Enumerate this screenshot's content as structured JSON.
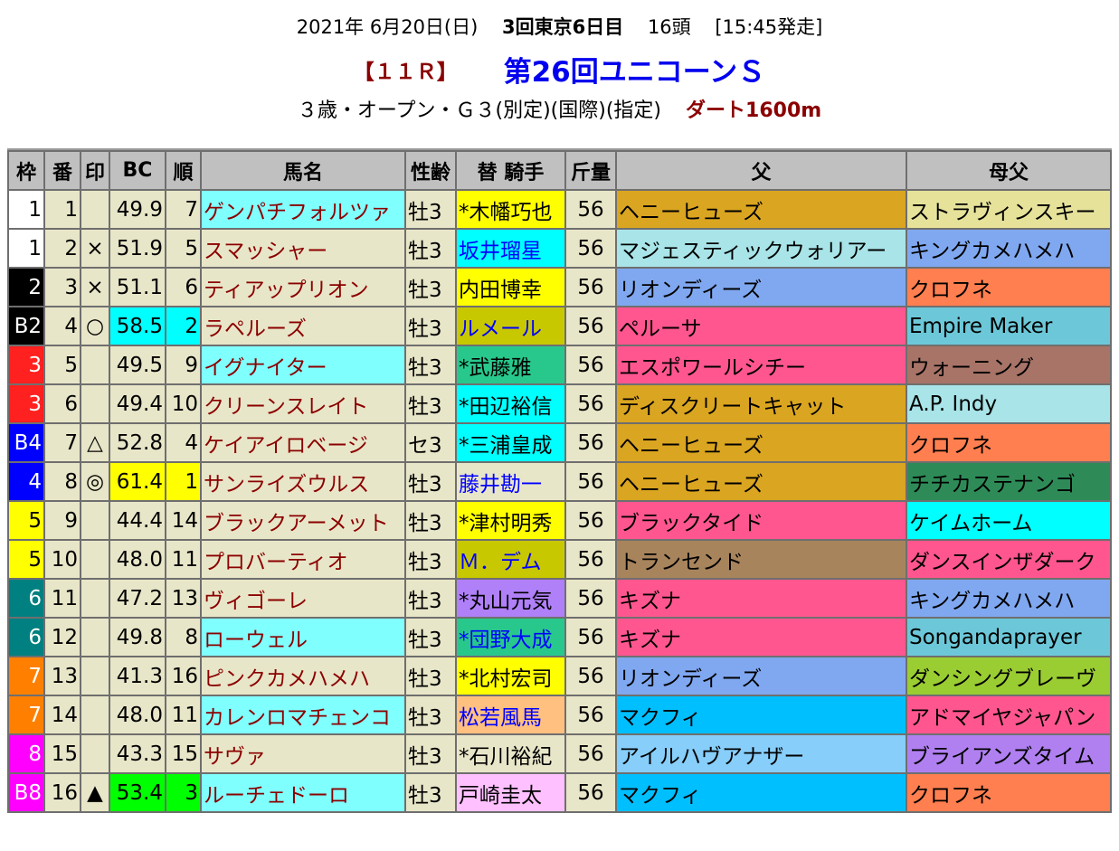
{
  "race": {
    "date": "2021年 6月20日(日)",
    "meeting": "3回東京6日目",
    "runners": "16頭",
    "post_time": "[15:45発走]",
    "race_no": "【１１Ｒ】",
    "title": "第26回ユニコーンＳ",
    "conditions": "３歳・オープン・Ｇ３(別定)(国際)(指定)",
    "course": "ダート1600m"
  },
  "columns": [
    "枠",
    "番",
    "印",
    "BC",
    "順",
    "馬名",
    "性齢",
    "替 騎手",
    "斤量",
    "父",
    "母父"
  ],
  "waku_colors": {
    "1": [
      "#ffffff",
      "#000000"
    ],
    "2": [
      "#000000",
      "#ffffff"
    ],
    "3": [
      "#ff2020",
      "#ffffff"
    ],
    "4": [
      "#0000ff",
      "#ffffff"
    ],
    "5": [
      "#ffff00",
      "#000000"
    ],
    "6": [
      "#008080",
      "#ffffff"
    ],
    "7": [
      "#ff8000",
      "#ffffff"
    ],
    "8": [
      "#ff00ff",
      "#ffffff"
    ]
  },
  "rows": [
    {
      "waku": "1",
      "wc": "1",
      "num": "1",
      "mark": "",
      "bc": "49.9",
      "rank": "7",
      "rank_bg": "",
      "name": "ゲンパチフォルツァ",
      "name_bg": "#80ffff",
      "sex_age": "牡3",
      "jockey": "*木幡巧也",
      "jockey_bg": "#ffff00",
      "jockey_color": "#000000",
      "weight": "56",
      "sire": "ヘニーヒューズ",
      "sire_bg": "#daa520",
      "damsire": "ストラヴィンスキー",
      "damsire_bg": "#e6e29a"
    },
    {
      "waku": "1",
      "wc": "1",
      "num": "2",
      "mark": "×",
      "bc": "51.9",
      "rank": "5",
      "rank_bg": "",
      "name": "スマッシャー",
      "name_bg": "",
      "sex_age": "牡3",
      "jockey": "坂井瑠星",
      "jockey_bg": "#00ffff",
      "jockey_color": "#0000ff",
      "weight": "56",
      "sire": "マジェスティックウォリアー",
      "sire_bg": "#a8e4e8",
      "damsire": "キングカメハメハ",
      "damsire_bg": "#80a8f0"
    },
    {
      "waku": "2",
      "wc": "2",
      "num": "3",
      "mark": "×",
      "bc": "51.1",
      "rank": "6",
      "rank_bg": "",
      "name": "ティアップリオン",
      "name_bg": "",
      "sex_age": "牡3",
      "jockey": "内田博幸",
      "jockey_bg": "#ffff00",
      "jockey_color": "#000000",
      "weight": "56",
      "sire": "リオンディーズ",
      "sire_bg": "#80a8f0",
      "damsire": "クロフネ",
      "damsire_bg": "#ff7f50"
    },
    {
      "waku": "B2",
      "wc": "2",
      "num": "4",
      "mark": "○",
      "bc": "58.5",
      "rank": "2",
      "rank_bg": "#00ffff",
      "name": "ラペルーズ",
      "name_bg": "",
      "sex_age": "牡3",
      "jockey": "ルメール",
      "jockey_bg": "#c8c800",
      "jockey_color": "#0000ff",
      "weight": "56",
      "sire": "ペルーサ",
      "sire_bg": "#ff5690",
      "damsire": "Empire Maker",
      "damsire_bg": "#6cc8d8"
    },
    {
      "waku": "3",
      "wc": "3",
      "num": "5",
      "mark": "",
      "bc": "49.5",
      "rank": "9",
      "rank_bg": "",
      "name": "イグナイター",
      "name_bg": "#80ffff",
      "sex_age": "牡3",
      "jockey": "*武藤雅",
      "jockey_bg": "#28c88c",
      "jockey_color": "#000000",
      "weight": "56",
      "sire": "エスポワールシチー",
      "sire_bg": "#ff5690",
      "damsire": "ウォーニング",
      "damsire_bg": "#a87468"
    },
    {
      "waku": "3",
      "wc": "3",
      "num": "6",
      "mark": "",
      "bc": "49.4",
      "rank": "10",
      "rank_bg": "",
      "name": "クリーンスレイト",
      "name_bg": "",
      "sex_age": "牡3",
      "jockey": "*田辺裕信",
      "jockey_bg": "#00ffff",
      "jockey_color": "#000000",
      "weight": "56",
      "sire": "ディスクリートキャット",
      "sire_bg": "#daa520",
      "damsire": "A.P. Indy",
      "damsire_bg": "#a8e4e8"
    },
    {
      "waku": "B4",
      "wc": "4",
      "num": "7",
      "mark": "△",
      "bc": "52.8",
      "rank": "4",
      "rank_bg": "",
      "name": "ケイアイロベージ",
      "name_bg": "",
      "sex_age": "セ3",
      "jockey": "*三浦皇成",
      "jockey_bg": "#00ffff",
      "jockey_color": "#000000",
      "weight": "56",
      "sire": "ヘニーヒューズ",
      "sire_bg": "#daa520",
      "damsire": "クロフネ",
      "damsire_bg": "#ff7f50"
    },
    {
      "waku": "4",
      "wc": "4",
      "num": "8",
      "mark": "◎",
      "bc": "61.4",
      "rank": "1",
      "rank_bg": "#ffff00",
      "name": "サンライズウルス",
      "name_bg": "",
      "sex_age": "牡3",
      "jockey": "藤井勘一",
      "jockey_bg": "",
      "jockey_color": "#0000ff",
      "weight": "56",
      "sire": "ヘニーヒューズ",
      "sire_bg": "#daa520",
      "damsire": "チチカステナンゴ",
      "damsire_bg": "#2e8b57"
    },
    {
      "waku": "5",
      "wc": "5",
      "num": "9",
      "mark": "",
      "bc": "44.4",
      "rank": "14",
      "rank_bg": "",
      "name": "ブラックアーメット",
      "name_bg": "",
      "sex_age": "牡3",
      "jockey": "*津村明秀",
      "jockey_bg": "#ffff00",
      "jockey_color": "#000000",
      "weight": "56",
      "sire": "ブラックタイド",
      "sire_bg": "#ff5690",
      "damsire": "ケイムホーム",
      "damsire_bg": "#00ffff"
    },
    {
      "waku": "5",
      "wc": "5",
      "num": "10",
      "mark": "",
      "bc": "48.0",
      "rank": "11",
      "rank_bg": "",
      "name": "プロバーティオ",
      "name_bg": "",
      "sex_age": "牡3",
      "jockey": "Ｍ．デム",
      "jockey_bg": "#c8c800",
      "jockey_color": "#0000ff",
      "weight": "56",
      "sire": "トランセンド",
      "sire_bg": "#a8845c",
      "damsire": "ダンスインザダーク",
      "damsire_bg": "#ff5690"
    },
    {
      "waku": "6",
      "wc": "6",
      "num": "11",
      "mark": "",
      "bc": "47.2",
      "rank": "13",
      "rank_bg": "",
      "name": "ヴィゴーレ",
      "name_bg": "",
      "sex_age": "牡3",
      "jockey": "*丸山元気",
      "jockey_bg": "#b080f8",
      "jockey_color": "#000000",
      "weight": "56",
      "sire": "キズナ",
      "sire_bg": "#ff5690",
      "damsire": "キングカメハメハ",
      "damsire_bg": "#80a8f0"
    },
    {
      "waku": "6",
      "wc": "6",
      "num": "12",
      "mark": "",
      "bc": "49.8",
      "rank": "8",
      "rank_bg": "",
      "name": "ローウェル",
      "name_bg": "#80ffff",
      "sex_age": "牡3",
      "jockey": "*団野大成",
      "jockey_bg": "#28c88c",
      "jockey_color": "#0000ff",
      "weight": "56",
      "sire": "キズナ",
      "sire_bg": "#ff5690",
      "damsire": "Songandaprayer",
      "damsire_bg": "#6cc8d8"
    },
    {
      "waku": "7",
      "wc": "7",
      "num": "13",
      "mark": "",
      "bc": "41.3",
      "rank": "16",
      "rank_bg": "",
      "name": "ピンクカメハメハ",
      "name_bg": "",
      "sex_age": "牡3",
      "jockey": "*北村宏司",
      "jockey_bg": "#ffff00",
      "jockey_color": "#000000",
      "weight": "56",
      "sire": "リオンディーズ",
      "sire_bg": "#80a8f0",
      "damsire": "ダンシングブレーヴ",
      "damsire_bg": "#9acd32"
    },
    {
      "waku": "7",
      "wc": "7",
      "num": "14",
      "mark": "",
      "bc": "48.0",
      "rank": "11",
      "rank_bg": "",
      "name": "カレンロマチェンコ",
      "name_bg": "#80ffff",
      "sex_age": "牡3",
      "jockey": "松若風馬",
      "jockey_bg": "#ffc080",
      "jockey_color": "#0000ff",
      "weight": "56",
      "sire": "マクフィ",
      "sire_bg": "#00bfff",
      "damsire": "アドマイヤジャパン",
      "damsire_bg": "#ff5690"
    },
    {
      "waku": "8",
      "wc": "8",
      "num": "15",
      "mark": "",
      "bc": "43.3",
      "rank": "15",
      "rank_bg": "",
      "name": "サヴァ",
      "name_bg": "",
      "sex_age": "牡3",
      "jockey": "*石川裕紀",
      "jockey_bg": "",
      "jockey_color": "#000000",
      "weight": "56",
      "sire": "アイルハヴアナザー",
      "sire_bg": "#87cefa",
      "damsire": "ブライアンズタイム",
      "damsire_bg": "#b080f0"
    },
    {
      "waku": "B8",
      "wc": "8",
      "num": "16",
      "mark": "▲",
      "bc": "53.4",
      "rank": "3",
      "rank_bg": "#00ff00",
      "name": "ルーチェドーロ",
      "name_bg": "#80ffff",
      "sex_age": "牡3",
      "jockey": "戸崎圭太",
      "jockey_bg": "#ffc0ff",
      "jockey_color": "#000000",
      "weight": "56",
      "sire": "マクフィ",
      "sire_bg": "#00bfff",
      "damsire": "クロフネ",
      "damsire_bg": "#ff7f50"
    }
  ]
}
